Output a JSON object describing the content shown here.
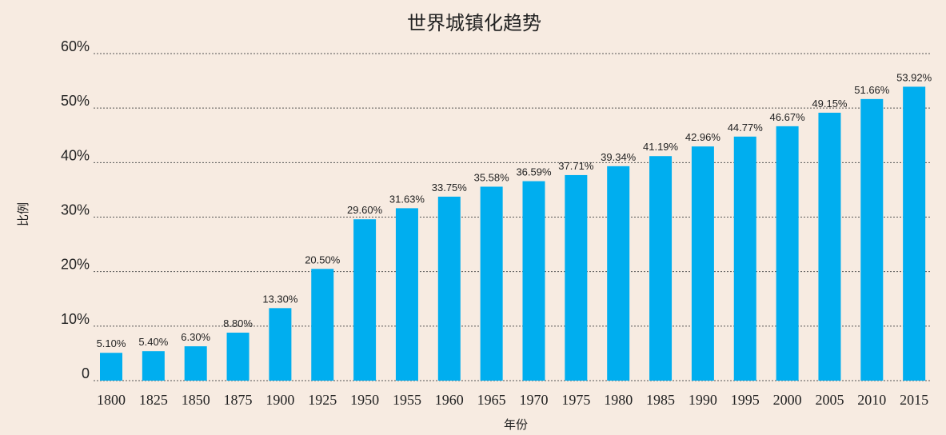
{
  "chart_data": {
    "type": "bar",
    "title": "世界城镇化趋势",
    "xlabel": "年份",
    "ylabel": "比例",
    "ylim": [
      0,
      60
    ],
    "yticks": [
      0,
      10,
      20,
      30,
      40,
      50,
      60
    ],
    "ytick_labels": [
      "0",
      "10%",
      "20%",
      "30%",
      "40%",
      "50%",
      "60%"
    ],
    "categories": [
      "1800",
      "1825",
      "1850",
      "1875",
      "1900",
      "1925",
      "1950",
      "1955",
      "1960",
      "1965",
      "1970",
      "1975",
      "1980",
      "1985",
      "1990",
      "1995",
      "2000",
      "2005",
      "2010",
      "2015"
    ],
    "values": [
      5.1,
      5.4,
      6.3,
      8.8,
      13.3,
      20.5,
      29.6,
      31.63,
      33.75,
      35.58,
      36.59,
      37.71,
      39.34,
      41.19,
      42.96,
      44.77,
      46.67,
      49.15,
      51.66,
      53.92
    ],
    "data_labels": [
      "5.10%",
      "5.40%",
      "6.30%",
      "8.80%",
      "13.30%",
      "20.50%",
      "29.60%",
      "31.63%",
      "33.75%",
      "35.58%",
      "36.59%",
      "37.71%",
      "39.34%",
      "41.19%",
      "42.96%",
      "44.77%",
      "46.67%",
      "49.15%",
      "51.66%",
      "53.92%"
    ],
    "bar_color": "#00aeef",
    "grid": true,
    "legend": "none"
  }
}
